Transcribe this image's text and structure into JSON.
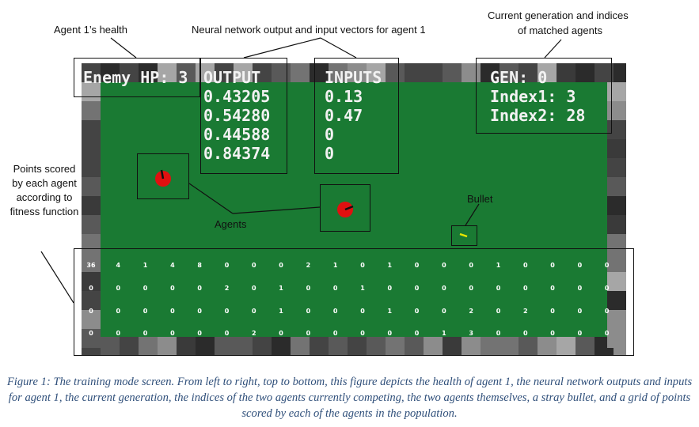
{
  "annotations": {
    "health": "Agent 1’s health",
    "nn": "Neural network output and input vectors for agent 1",
    "gen_line1": "Current generation and indices",
    "gen_line2": "of matched agents",
    "points": "Points scored by each agent according to fitness function",
    "agents": "Agents",
    "bullet": "Bullet"
  },
  "hud": {
    "enemy_hp": "Enemy HP: 3",
    "output_title": "OUTPUT",
    "outputs": [
      "0.43205",
      "0.54280",
      "0.44588",
      "0.84374"
    ],
    "inputs_title": "INPUTS",
    "inputs": [
      "0.13",
      "0.47",
      "0",
      "0"
    ],
    "gen": "GEN: 0",
    "index1": "Index1: 3",
    "index2": "Index2: 28"
  },
  "score_grid": [
    [
      "36",
      "4",
      "1",
      "4",
      "8",
      "0",
      "0",
      "0",
      "2",
      "1",
      "0",
      "1",
      "0",
      "0",
      "0",
      "1",
      "0",
      "0",
      "0",
      "0"
    ],
    [
      "0",
      "0",
      "0",
      "0",
      "0",
      "2",
      "0",
      "1",
      "0",
      "0",
      "1",
      "0",
      "0",
      "0",
      "0",
      "0",
      "0",
      "0",
      "0",
      "0"
    ],
    [
      "0",
      "0",
      "0",
      "0",
      "0",
      "0",
      "0",
      "1",
      "0",
      "0",
      "0",
      "1",
      "0",
      "0",
      "2",
      "0",
      "2",
      "0",
      "0",
      "0"
    ],
    [
      "0",
      "0",
      "0",
      "0",
      "0",
      "0",
      "2",
      "0",
      "0",
      "0",
      "0",
      "0",
      "0",
      "1",
      "3",
      "0",
      "0",
      "0",
      "0",
      "0"
    ]
  ],
  "colors": {
    "field": "#1a7a33",
    "agent": "#e01010",
    "bullet": "#e6e600",
    "caption": "#2f4f7a"
  },
  "caption": "Figure 1: The training mode screen.  From left to right, top to bottom, this figure depicts the health of agent 1, the neural network outputs and inputs for agent 1, the current generation, the indices of the two agents currently competing, the two agents themselves, a stray bullet, and a grid of points scored by each of the agents in the population."
}
